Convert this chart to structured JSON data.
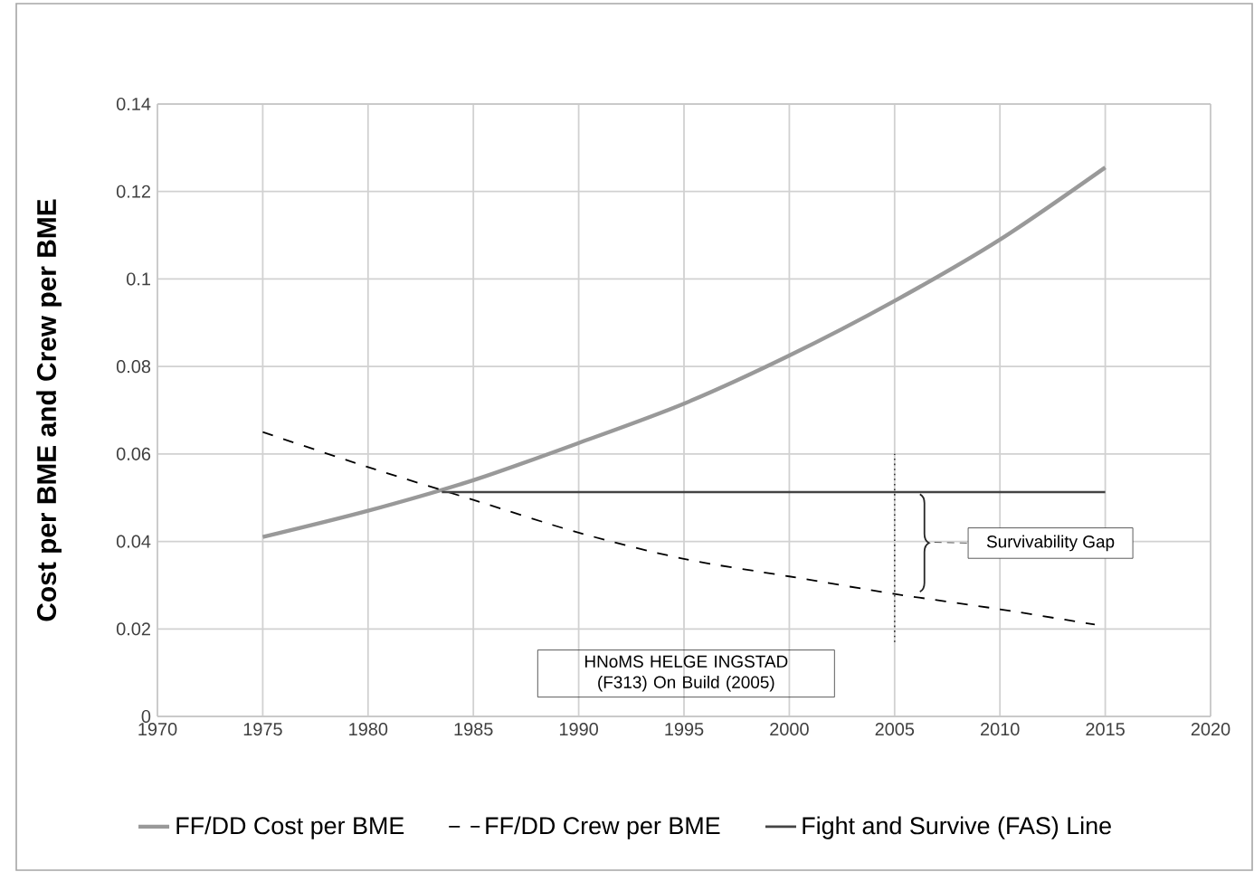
{
  "chart_data": {
    "type": "line",
    "ylabel": "Cost per BME and Crew per BME",
    "xlim": [
      1970,
      2020
    ],
    "ylim": [
      0,
      0.14
    ],
    "xticks": [
      1970,
      1975,
      1980,
      1985,
      1990,
      1995,
      2000,
      2005,
      2010,
      2015,
      2020
    ],
    "yticks": [
      0,
      0.02,
      0.04,
      0.06,
      0.08,
      0.1,
      0.12,
      0.14
    ],
    "grid": true,
    "legend": "bottom",
    "marker": "none",
    "annotations": [
      "Survivability Gap",
      "HNoMS HELGE INGSTAD (F313) On Build (2005)"
    ],
    "series": [
      {
        "name": "FF/DD Cost per BME",
        "color": "#999999",
        "line_style": "solid",
        "x": [
          1975,
          1980,
          1985,
          1990,
          1995,
          2000,
          2005,
          2010,
          2015
        ],
        "values": [
          0.041,
          0.047,
          0.054,
          0.0625,
          0.0715,
          0.0825,
          0.095,
          0.109,
          0.1255
        ]
      },
      {
        "name": "FF/DD Crew per BME",
        "color": "#000000",
        "line_style": "dashed",
        "x": [
          1975,
          1980,
          1985,
          1990,
          1995,
          2000,
          2005,
          2010,
          2014.5
        ],
        "values": [
          0.065,
          0.057,
          0.0495,
          0.042,
          0.036,
          0.032,
          0.028,
          0.0245,
          0.021
        ]
      },
      {
        "name": "Fight and Survive (FAS) Line",
        "color": "#444444",
        "line_style": "solid",
        "x": [
          1983.5,
          2015
        ],
        "values": [
          0.0513,
          0.0513
        ]
      },
      {
        "color": "#333333",
        "line_style": "dotted",
        "x": [
          2005,
          2005
        ],
        "values": [
          0.017,
          0.06
        ]
      }
    ]
  }
}
